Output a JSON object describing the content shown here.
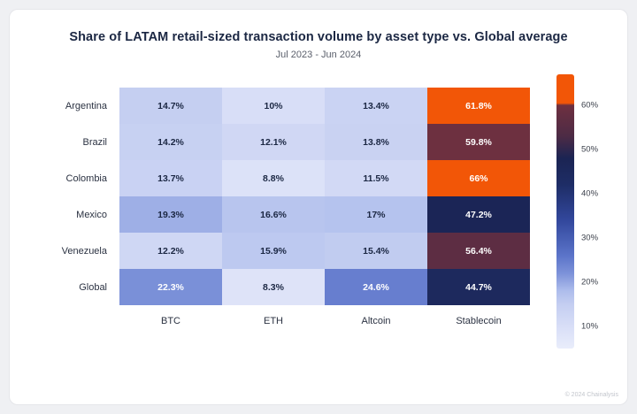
{
  "title": "Share of LATAM retail-sized transaction volume by asset type vs. Global average",
  "subtitle": "Jul 2023 - Jun 2024",
  "footer": "© 2024 Chainalysis",
  "colors": {
    "page_background": "#eff0f3",
    "card_background": "#ffffff",
    "title_text": "#1b2743",
    "subtitle_text": "#5a5f6b",
    "label_text": "#2b3242",
    "cell_text_dark": "#1b2743",
    "cell_text_light": "#ffffff",
    "accent_orange": "#f25607"
  },
  "chart_data": {
    "type": "heatmap",
    "rows": [
      "Argentina",
      "Brazil",
      "Colombia",
      "Mexico",
      "Venezuela",
      "Global"
    ],
    "columns": [
      "BTC",
      "ETH",
      "Altcoin",
      "Stablecoin"
    ],
    "values": [
      [
        14.7,
        10,
        13.4,
        61.8
      ],
      [
        14.2,
        12.1,
        13.8,
        59.8
      ],
      [
        13.7,
        8.8,
        11.5,
        66
      ],
      [
        19.3,
        16.6,
        17,
        47.2
      ],
      [
        12.2,
        15.9,
        15.4,
        56.4
      ],
      [
        22.3,
        8.3,
        24.6,
        44.7
      ]
    ],
    "labels": [
      [
        "14.7%",
        "10%",
        "13.4%",
        "61.8%"
      ],
      [
        "14.2%",
        "12.1%",
        "13.8%",
        "59.8%"
      ],
      [
        "13.7%",
        "8.8%",
        "11.5%",
        "66%"
      ],
      [
        "19.3%",
        "16.6%",
        "17%",
        "47.2%"
      ],
      [
        "12.2%",
        "15.9%",
        "15.4%",
        "56.4%"
      ],
      [
        "22.3%",
        "8.3%",
        "24.6%",
        "44.7%"
      ]
    ],
    "colorbar": {
      "min": 5,
      "max": 67,
      "ticks": [
        {
          "label": "60%",
          "value": 60
        },
        {
          "label": "50%",
          "value": 50
        },
        {
          "label": "40%",
          "value": 40
        },
        {
          "label": "30%",
          "value": 30
        },
        {
          "label": "20%",
          "value": 20
        },
        {
          "label": "10%",
          "value": 10
        }
      ],
      "stops": [
        {
          "v": 5,
          "c": "#e9edfb"
        },
        {
          "v": 10,
          "c": "#d8def7"
        },
        {
          "v": 15,
          "c": "#c4cef1"
        },
        {
          "v": 18,
          "c": "#aebdec"
        },
        {
          "v": 22,
          "c": "#7d92d9"
        },
        {
          "v": 26,
          "c": "#5b74c9"
        },
        {
          "v": 34,
          "c": "#32479c"
        },
        {
          "v": 42,
          "c": "#1e2d66"
        },
        {
          "v": 48,
          "c": "#1b2453"
        },
        {
          "v": 53,
          "c": "#4d2b45"
        },
        {
          "v": 60,
          "c": "#6e3040"
        },
        {
          "v": 60.5,
          "c": "#f25607"
        },
        {
          "v": 67,
          "c": "#f25607"
        }
      ]
    }
  }
}
